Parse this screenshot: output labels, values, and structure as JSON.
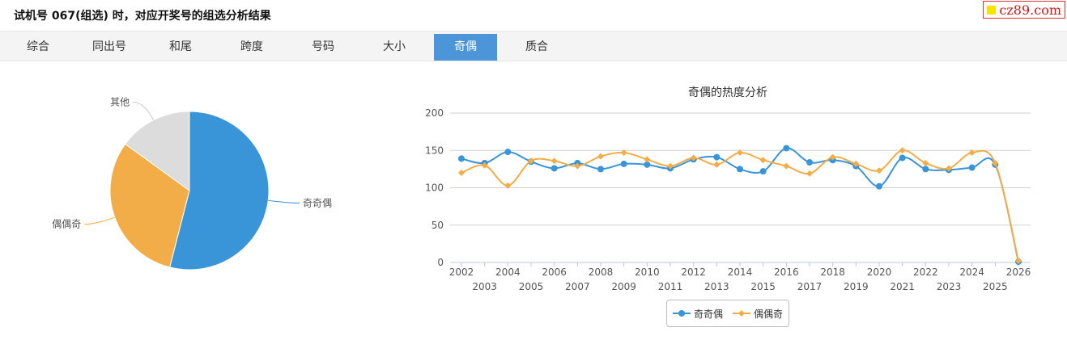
{
  "header": {
    "title": "试机号 067(组选) 时，对应开奖号的组选分析结果"
  },
  "logo": {
    "text": "cz89.com"
  },
  "tabs": [
    {
      "label": "综合",
      "active": false
    },
    {
      "label": "同出号",
      "active": false
    },
    {
      "label": "和尾",
      "active": false
    },
    {
      "label": "跨度",
      "active": false
    },
    {
      "label": "号码",
      "active": false
    },
    {
      "label": "大小",
      "active": false
    },
    {
      "label": "奇偶",
      "active": true
    },
    {
      "label": "质合",
      "active": false
    }
  ],
  "colors": {
    "series1": "#3a94d8",
    "series2": "#f3ad48",
    "other": "#dcdcdc",
    "grid": "#d0d0d0",
    "tab_active": "#4b95d8"
  },
  "chart_data": [
    {
      "type": "pie",
      "title": "",
      "slices": [
        {
          "label": "奇奇偶",
          "value": 54,
          "color": "#3a94d8"
        },
        {
          "label": "偶偶奇",
          "value": 31,
          "color": "#f3ad48"
        },
        {
          "label": "其他",
          "value": 15,
          "color": "#dcdcdc"
        }
      ]
    },
    {
      "type": "line",
      "title": "奇偶的热度分析",
      "xlabel": "",
      "ylabel": "",
      "x": [
        "2002",
        "2003",
        "2004",
        "2005",
        "2006",
        "2007",
        "2008",
        "2009",
        "2010",
        "2011",
        "2012",
        "2013",
        "2014",
        "2015",
        "2016",
        "2017",
        "2018",
        "2019",
        "2020",
        "2021",
        "2022",
        "2023",
        "2024",
        "2025",
        "2026"
      ],
      "ylim": [
        0,
        200
      ],
      "yticks": [
        0,
        50,
        100,
        150,
        200
      ],
      "grid": true,
      "legend": "bottom-center",
      "series": [
        {
          "name": "奇奇偶",
          "color": "#3a94d8",
          "marker": "circle",
          "values": [
            139,
            133,
            148,
            135,
            126,
            133,
            125,
            132,
            131,
            126,
            138,
            141,
            125,
            122,
            153,
            134,
            137,
            129,
            102,
            140,
            125,
            124,
            127,
            131,
            1
          ]
        },
        {
          "name": "偶偶奇",
          "color": "#f3ad48",
          "marker": "diamond",
          "values": [
            120,
            130,
            103,
            136,
            136,
            129,
            142,
            147,
            138,
            129,
            140,
            131,
            147,
            137,
            129,
            119,
            141,
            132,
            123,
            150,
            133,
            126,
            147,
            133,
            2
          ]
        }
      ]
    }
  ]
}
